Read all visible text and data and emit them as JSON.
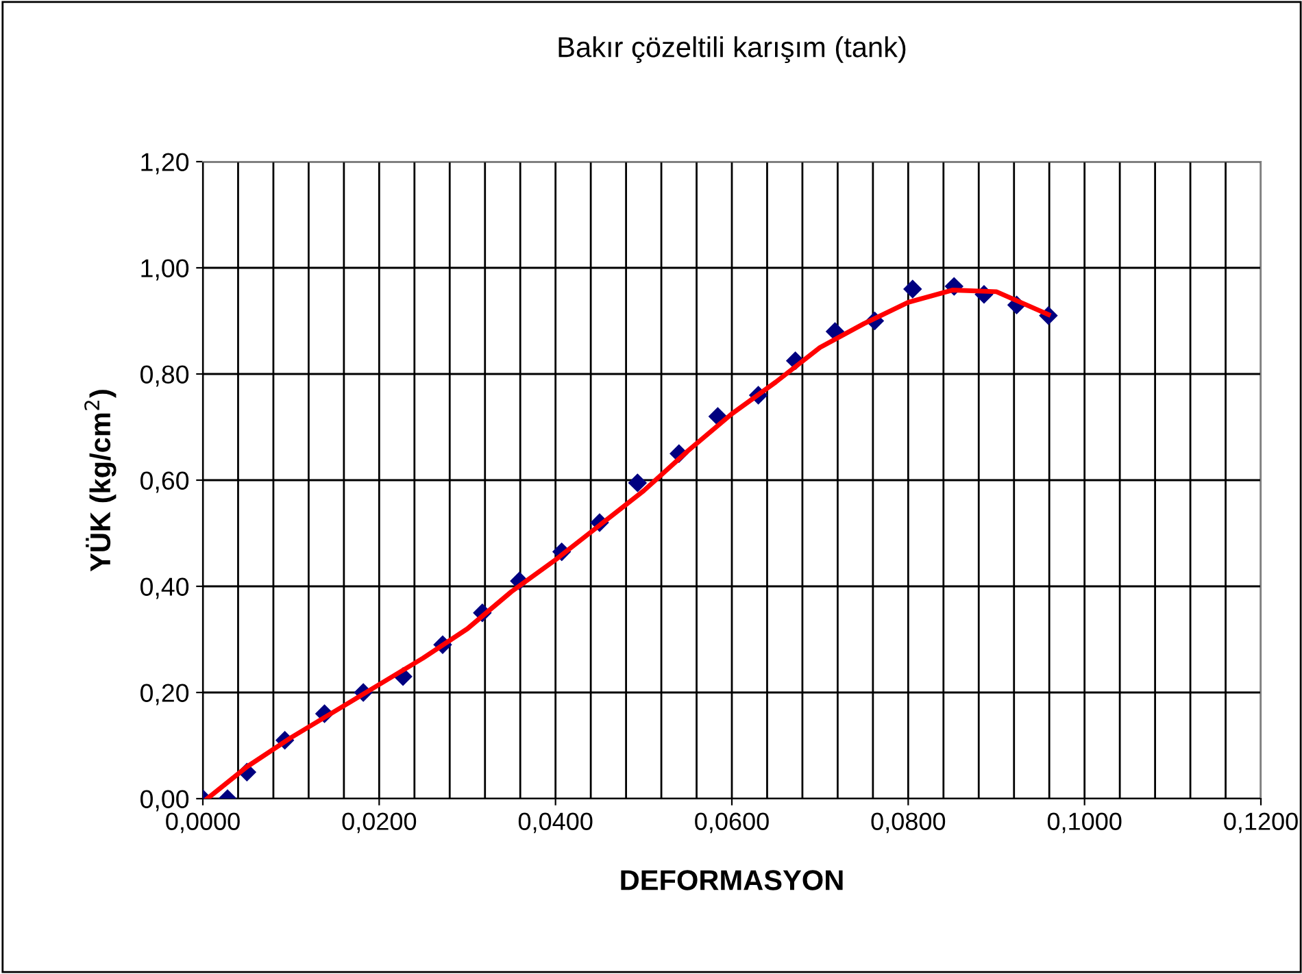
{
  "chart_data": {
    "type": "scatter",
    "title": "Bakır çözeltili karışım (tank)",
    "xlabel": "DEFORMASYON",
    "ylabel": "YÜK (kg/cm$^{2}$)",
    "xlim": [
      0,
      0.12
    ],
    "ylim": [
      0,
      1.2
    ],
    "xticks": [
      {
        "value": 0,
        "label": "0,0000"
      },
      {
        "value": 0.02,
        "label": "0,0200"
      },
      {
        "value": 0.04,
        "label": "0,0400"
      },
      {
        "value": 0.06,
        "label": "0,0600"
      },
      {
        "value": 0.08,
        "label": "0,0800"
      },
      {
        "value": 0.1,
        "label": "0,1000"
      },
      {
        "value": 0.12,
        "label": "0,1200"
      }
    ],
    "yticks": [
      {
        "value": 0,
        "label": "0,00"
      },
      {
        "value": 0.2,
        "label": "0,20"
      },
      {
        "value": 0.4,
        "label": "0,40"
      },
      {
        "value": 0.6,
        "label": "0,60"
      },
      {
        "value": 0.8,
        "label": "0,80"
      },
      {
        "value": 1.0,
        "label": "1,00"
      },
      {
        "value": 1.2,
        "label": "1,20"
      }
    ],
    "grid": true,
    "marker": "diamond",
    "series": [
      {
        "color": "#000080",
        "x": [
          0,
          0.0028,
          0.005,
          0.0093,
          0.0138,
          0.0182,
          0.0227,
          0.0272,
          0.0317,
          0.0359,
          0.0407,
          0.045,
          0.0493,
          0.054,
          0.0584,
          0.063,
          0.0672,
          0.0717,
          0.0762,
          0.0805,
          0.0852,
          0.0886,
          0.0923,
          0.0959
        ],
        "values": [
          0,
          0.0,
          0.05,
          0.11,
          0.16,
          0.2,
          0.23,
          0.29,
          0.35,
          0.41,
          0.465,
          0.52,
          0.595,
          0.65,
          0.72,
          0.76,
          0.825,
          0.88,
          0.9,
          0.96,
          0.965,
          0.95,
          0.93,
          0.91
        ]
      },
      {
        "type": "line",
        "color": "#ff0000",
        "marker": "none",
        "line_style": "solid",
        "x": [
          0.0005,
          0.005,
          0.01,
          0.015,
          0.02,
          0.025,
          0.03,
          0.035,
          0.04,
          0.045,
          0.05,
          0.055,
          0.06,
          0.065,
          0.07,
          0.075,
          0.08,
          0.085,
          0.09,
          0.0959
        ],
        "values": [
          0.0,
          0.06,
          0.115,
          0.165,
          0.215,
          0.265,
          0.32,
          0.39,
          0.45,
          0.515,
          0.58,
          0.655,
          0.725,
          0.785,
          0.85,
          0.895,
          0.935,
          0.958,
          0.955,
          0.912
        ]
      }
    ]
  }
}
